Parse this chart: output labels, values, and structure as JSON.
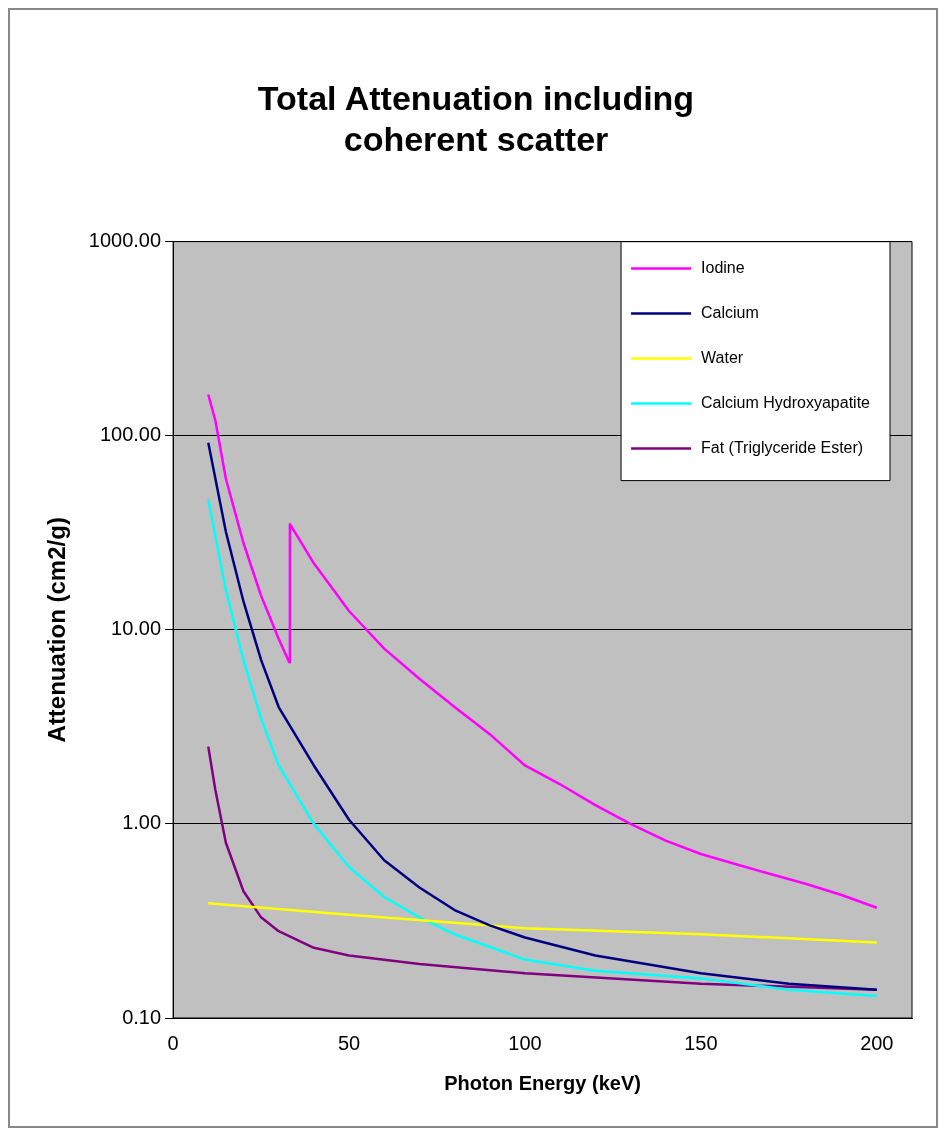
{
  "chart_data": {
    "type": "line",
    "title": "Total Attenuation including coherent scatter",
    "xlabel": "Photon Energy (keV)",
    "ylabel": "Attenuation (cm2/g)",
    "log": "y",
    "grid": "y",
    "legend": "top right",
    "marker": "none",
    "line_style": "solid",
    "xlim": [
      0,
      210
    ],
    "xticks": [
      0,
      50,
      100,
      150,
      200
    ],
    "ylim": [
      0.1,
      1000
    ],
    "yticks": [
      {
        "value": 0.1,
        "label": "0.10"
      },
      {
        "value": 1,
        "label": "1.00"
      },
      {
        "value": 10,
        "label": "10.00"
      },
      {
        "value": 100,
        "label": "100.00"
      },
      {
        "value": 1000,
        "label": "1000.00"
      }
    ],
    "series": [
      {
        "name": "Iodine",
        "color": "#ff00ff",
        "x": [
          10,
          12,
          15,
          20,
          25,
          30,
          33,
          33.2,
          35,
          40,
          50,
          60,
          70,
          80,
          90,
          100,
          110,
          120,
          130,
          140,
          150,
          160,
          170,
          180,
          190,
          200
        ],
        "values": [
          163,
          120,
          60,
          28,
          15,
          9,
          6.8,
          35,
          31,
          22,
          12.5,
          8,
          5.6,
          4,
          2.9,
          2,
          1.6,
          1.25,
          1,
          0.82,
          0.7,
          0.62,
          0.55,
          0.49,
          0.43,
          0.37
        ]
      },
      {
        "name": "Calcium",
        "color": "#000080",
        "x": [
          10,
          15,
          20,
          25,
          30,
          40,
          50,
          60,
          70,
          80,
          90,
          100,
          120,
          150,
          175,
          200
        ],
        "values": [
          92,
          32,
          14,
          7,
          4,
          2,
          1.05,
          0.65,
          0.47,
          0.36,
          0.3,
          0.26,
          0.21,
          0.17,
          0.15,
          0.14
        ]
      },
      {
        "name": "Water",
        "color": "#ffff00",
        "x": [
          10,
          50,
          100,
          150,
          200
        ],
        "values": [
          0.39,
          0.34,
          0.29,
          0.27,
          0.245
        ]
      },
      {
        "name": "Calcium Hydroxyapatite",
        "color": "#00ffff",
        "x": [
          10,
          15,
          20,
          25,
          30,
          40,
          50,
          60,
          70,
          80,
          100,
          120,
          150,
          175,
          200
        ],
        "values": [
          47,
          16,
          7,
          3.5,
          2,
          1,
          0.6,
          0.42,
          0.33,
          0.27,
          0.2,
          0.175,
          0.16,
          0.14,
          0.13
        ]
      },
      {
        "name": "Fat (Triglyceride Ester)",
        "color": "#800080",
        "x": [
          10,
          12,
          15,
          20,
          25,
          30,
          40,
          50,
          70,
          100,
          150,
          200
        ],
        "values": [
          2.5,
          1.5,
          0.8,
          0.45,
          0.33,
          0.28,
          0.23,
          0.21,
          0.19,
          0.17,
          0.15,
          0.14
        ]
      }
    ]
  }
}
